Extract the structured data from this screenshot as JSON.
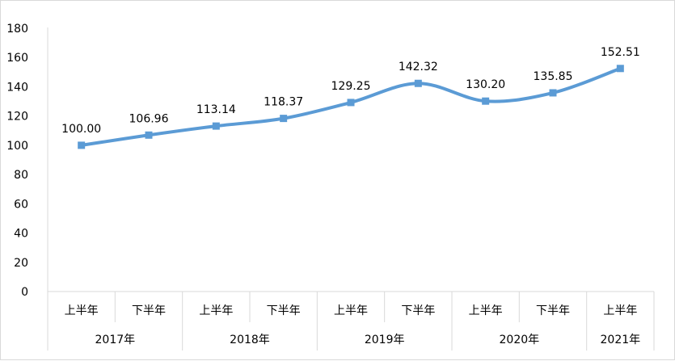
{
  "chart_data": {
    "type": "line",
    "title": "",
    "xlabel": "",
    "ylabel": "",
    "ylim": [
      0,
      180
    ],
    "y_ticks": [
      "0",
      "20",
      "40",
      "60",
      "80",
      "100",
      "120",
      "140",
      "160",
      "180"
    ],
    "categories": [
      "上半年",
      "下半年",
      "上半年",
      "下半年",
      "上半年",
      "下半年",
      "上半年",
      "下半年",
      "上半年"
    ],
    "groups": [
      {
        "label": "2017年",
        "span": 2
      },
      {
        "label": "2018年",
        "span": 2
      },
      {
        "label": "2019年",
        "span": 2
      },
      {
        "label": "2020年",
        "span": 2
      },
      {
        "label": "2021年",
        "span": 1
      }
    ],
    "series": [
      {
        "values": [
          100.0,
          106.96,
          113.14,
          118.37,
          129.25,
          142.32,
          130.2,
          135.85,
          152.51
        ],
        "data_labels": [
          "100.00",
          "106.96",
          "113.14",
          "118.37",
          "129.25",
          "142.32",
          "130.20",
          "135.85",
          "152.51"
        ],
        "color": "#5b9bd5",
        "smooth": true,
        "marker": "square"
      }
    ],
    "grid": false,
    "legend": "none"
  }
}
